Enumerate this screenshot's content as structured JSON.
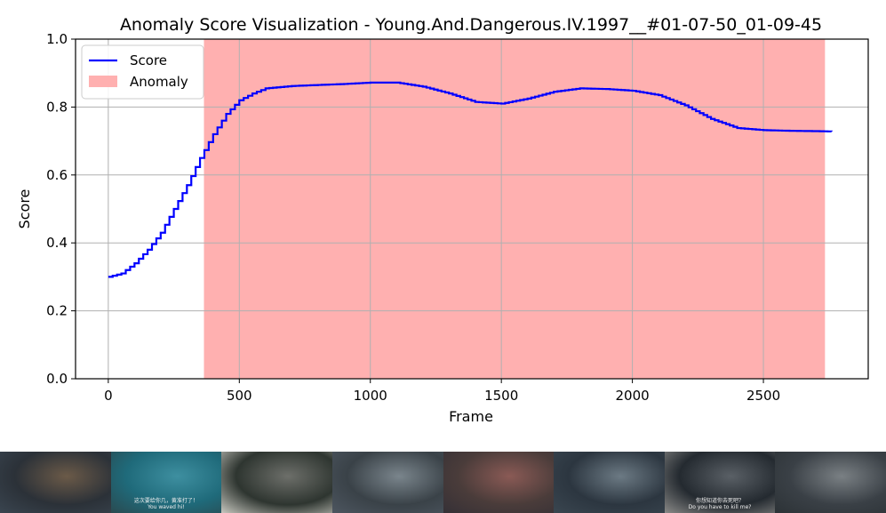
{
  "chart_data": {
    "type": "line",
    "title": "Anomaly Score Visualization - Young.And.Dangerous.IV.1997__#01-07-50_01-09-45",
    "xlabel": "Frame",
    "ylabel": "Score",
    "xlim": [
      -125,
      2900
    ],
    "ylim": [
      0.0,
      1.0
    ],
    "xticks": [
      0,
      500,
      1000,
      1500,
      2000,
      2500
    ],
    "yticks": [
      0.0,
      0.2,
      0.4,
      0.6,
      0.8,
      1.0
    ],
    "xtick_labels": [
      "0",
      "500",
      "1000",
      "1500",
      "2000",
      "2500"
    ],
    "ytick_labels": [
      "0.0",
      "0.2",
      "0.4",
      "0.6",
      "0.8",
      "1.0"
    ],
    "grid": true,
    "legend_position": "top-left",
    "series": [
      {
        "name": "Score",
        "color": "#0000ff",
        "style": "step",
        "x": [
          0,
          50,
          100,
          150,
          200,
          250,
          300,
          350,
          400,
          450,
          500,
          550,
          600,
          700,
          800,
          900,
          1000,
          1100,
          1200,
          1300,
          1400,
          1500,
          1600,
          1700,
          1800,
          1900,
          2000,
          2100,
          2200,
          2300,
          2400,
          2500,
          2600,
          2700,
          2760
        ],
        "y": [
          0.3,
          0.31,
          0.34,
          0.38,
          0.43,
          0.5,
          0.57,
          0.65,
          0.72,
          0.78,
          0.82,
          0.84,
          0.855,
          0.862,
          0.865,
          0.868,
          0.872,
          0.872,
          0.86,
          0.84,
          0.815,
          0.81,
          0.825,
          0.845,
          0.855,
          0.853,
          0.848,
          0.835,
          0.805,
          0.765,
          0.738,
          0.732,
          0.73,
          0.729,
          0.728
        ]
      }
    ],
    "spans": [
      {
        "name": "Anomaly",
        "x_start": 365,
        "x_end": 2735,
        "color": "#ffb0b0"
      }
    ]
  },
  "thumbnails": [
    {
      "name": "market-stall",
      "colors": [
        "#2b3138",
        "#6b5a48",
        "#3a4550"
      ]
    },
    {
      "name": "men-at-table",
      "colors": [
        "#1f6a7a",
        "#3e8fa0",
        "#2a4a50"
      ],
      "caption": [
        "这次要给你几，黄准打了！",
        "You waved hi!"
      ]
    },
    {
      "name": "street-boxes",
      "colors": [
        "#2e3530",
        "#6d6f6a",
        "#c8c8c0"
      ]
    },
    {
      "name": "crowd-fight",
      "colors": [
        "#3a4248",
        "#7a858c",
        "#4d5660"
      ]
    },
    {
      "name": "running-crowd",
      "colors": [
        "#4a3c3a",
        "#8a5a55",
        "#353036"
      ]
    },
    {
      "name": "brawl",
      "colors": [
        "#2c3640",
        "#6c7a84",
        "#3a4650"
      ]
    },
    {
      "name": "close-up",
      "colors": [
        "#242a30",
        "#5a6066",
        "#8a8a88"
      ],
      "caption": [
        "你想知道你去死吧？",
        "Do you have to kill me?"
      ]
    },
    {
      "name": "alley",
      "colors": [
        "#3a4046",
        "#7a8084",
        "#2c3236"
      ]
    }
  ]
}
